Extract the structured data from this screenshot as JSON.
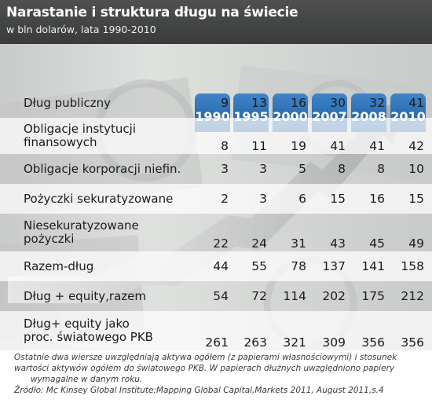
{
  "header": {
    "title": "Narastanie i struktura długu na świecie",
    "subtitle": "w bln dolarów, lata 1990-2010"
  },
  "chart_data": {
    "type": "table",
    "columns": [
      "1990",
      "1995",
      "2000",
      "2007",
      "2008",
      "2010"
    ],
    "rows": [
      {
        "label": "Dług publiczny",
        "values": [
          9,
          13,
          16,
          30,
          32,
          41
        ]
      },
      {
        "label": "Obligacje instytucji finansowych",
        "lines": [
          "Obligacje instytucji",
          "finansowych"
        ],
        "values": [
          8,
          11,
          19,
          41,
          41,
          42
        ]
      },
      {
        "label": "Obligacje korporacji niefin.",
        "values": [
          3,
          3,
          5,
          8,
          8,
          10
        ]
      },
      {
        "label": "Pożyczki sekuratyzowane",
        "values": [
          2,
          3,
          6,
          15,
          16,
          15
        ]
      },
      {
        "label": "Niesekuratyzowane pożyczki",
        "lines": [
          "Niesekuratyzowane",
          "pożyczki"
        ],
        "values": [
          22,
          24,
          31,
          43,
          45,
          49
        ]
      },
      {
        "label": "Razem-dług",
        "values": [
          44,
          55,
          78,
          137,
          141,
          158
        ]
      },
      {
        "label": "Dług + equity,razem",
        "values": [
          54,
          72,
          114,
          202,
          175,
          212
        ]
      },
      {
        "label": "Dług+ equity jako proc. światowego PKB",
        "lines": [
          "Dług+ equity jako",
          "proc. światowego PKB"
        ],
        "values": [
          261,
          263,
          321,
          309,
          356,
          356
        ]
      }
    ]
  },
  "footer": {
    "note_lines": [
      "Ostatnie dwa wiersze uwzględniają aktywa ogółem (z papierami własnościowymi) i stosunek",
      "wartości aktywów ogółem do światowego PKB. W papierach dłużnych uwzględniono papiery",
      "wymagalne w danym roku."
    ],
    "source": "Źródło: Mc Kinsey Global Institute:Mapping Global Capital,Markets 2011, August 2011,s.4"
  },
  "colors": {
    "header_bg": "#444545",
    "tab_blue": "#2a6db0",
    "band_light": "#ffffff",
    "panel_bg": "#d6d8d6"
  }
}
